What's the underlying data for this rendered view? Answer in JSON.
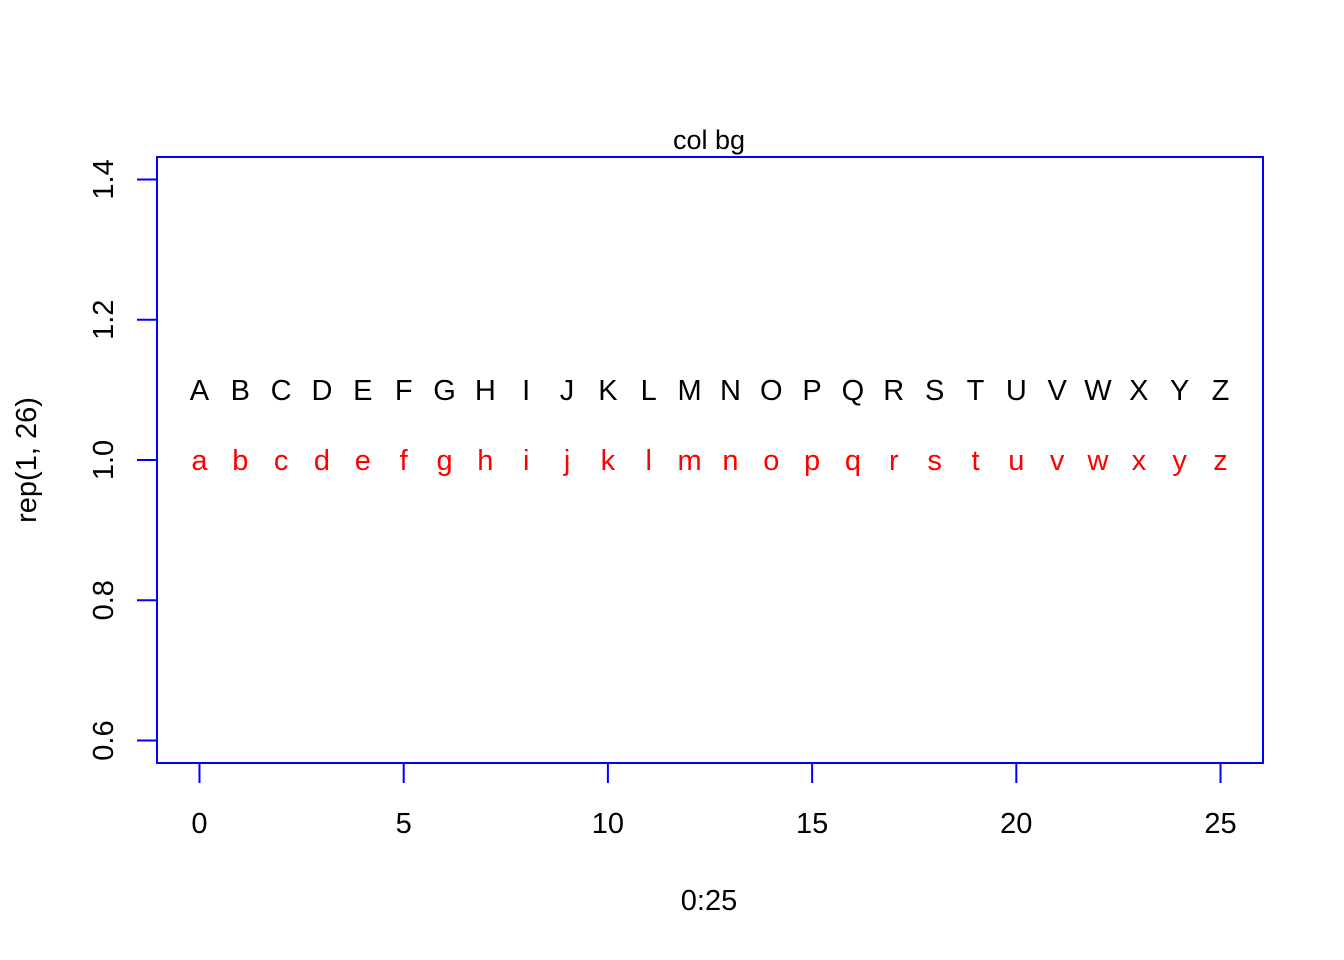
{
  "chart_data": {
    "type": "scatter",
    "title": "col bg",
    "xlabel": "0:25",
    "ylabel": "rep(1, 26)",
    "xlim": [
      -1.04,
      26.04
    ],
    "ylim": [
      0.568,
      1.432
    ],
    "x_ticks": [
      0,
      5,
      10,
      15,
      20,
      25
    ],
    "x_tick_labels": [
      "0",
      "5",
      "10",
      "15",
      "20",
      "25"
    ],
    "y_ticks": [
      0.6,
      0.8,
      1.0,
      1.2,
      1.4
    ],
    "y_tick_labels": [
      "0.6",
      "0.8",
      "1.0",
      "1.2",
      "1.4"
    ],
    "grid": false,
    "frame_color": "#0000ff",
    "series": [
      {
        "color": "#000000",
        "x": [
          0,
          1,
          2,
          3,
          4,
          5,
          6,
          7,
          8,
          9,
          10,
          11,
          12,
          13,
          14,
          15,
          16,
          17,
          18,
          19,
          20,
          21,
          22,
          23,
          24,
          25
        ],
        "y": [
          1.1,
          1.1,
          1.1,
          1.1,
          1.1,
          1.1,
          1.1,
          1.1,
          1.1,
          1.1,
          1.1,
          1.1,
          1.1,
          1.1,
          1.1,
          1.1,
          1.1,
          1.1,
          1.1,
          1.1,
          1.1,
          1.1,
          1.1,
          1.1,
          1.1,
          1.1
        ],
        "labels": [
          "A",
          "B",
          "C",
          "D",
          "E",
          "F",
          "G",
          "H",
          "I",
          "J",
          "K",
          "L",
          "M",
          "N",
          "O",
          "P",
          "Q",
          "R",
          "S",
          "T",
          "U",
          "V",
          "W",
          "X",
          "Y",
          "Z"
        ]
      },
      {
        "color": "#ff0000",
        "x": [
          0,
          1,
          2,
          3,
          4,
          5,
          6,
          7,
          8,
          9,
          10,
          11,
          12,
          13,
          14,
          15,
          16,
          17,
          18,
          19,
          20,
          21,
          22,
          23,
          24,
          25
        ],
        "y": [
          1.0,
          1.0,
          1.0,
          1.0,
          1.0,
          1.0,
          1.0,
          1.0,
          1.0,
          1.0,
          1.0,
          1.0,
          1.0,
          1.0,
          1.0,
          1.0,
          1.0,
          1.0,
          1.0,
          1.0,
          1.0,
          1.0,
          1.0,
          1.0,
          1.0,
          1.0
        ],
        "labels": [
          "a",
          "b",
          "c",
          "d",
          "e",
          "f",
          "g",
          "h",
          "i",
          "j",
          "k",
          "l",
          "m",
          "n",
          "o",
          "p",
          "q",
          "r",
          "s",
          "t",
          "u",
          "v",
          "w",
          "x",
          "y",
          "z"
        ]
      }
    ]
  }
}
